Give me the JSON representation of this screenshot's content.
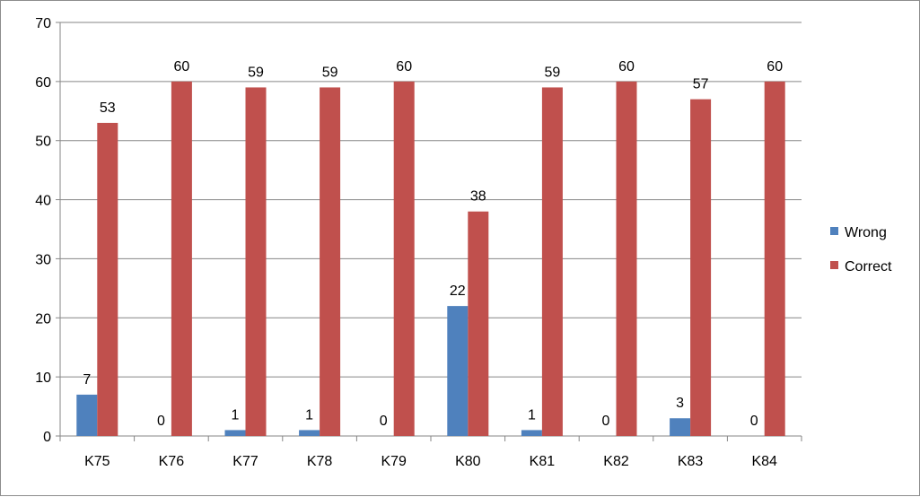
{
  "chart_data": {
    "type": "bar",
    "title": "",
    "xlabel": "",
    "ylabel": "",
    "categories": [
      "K75",
      "K76",
      "K77",
      "K78",
      "K79",
      "K80",
      "K81",
      "K82",
      "K83",
      "K84"
    ],
    "series": [
      {
        "name": "Wrong",
        "color": "#4F81BD",
        "values": [
          7,
          0,
          1,
          1,
          0,
          22,
          1,
          0,
          3,
          0
        ]
      },
      {
        "name": "Correct",
        "color": "#C0504D",
        "values": [
          53,
          60,
          59,
          59,
          60,
          38,
          59,
          60,
          57,
          60
        ]
      }
    ],
    "ylim": [
      0,
      70
    ],
    "yticks": [
      0,
      10,
      20,
      30,
      40,
      50,
      60,
      70
    ],
    "grid": true,
    "legend_position": "right",
    "data_labels": true
  }
}
